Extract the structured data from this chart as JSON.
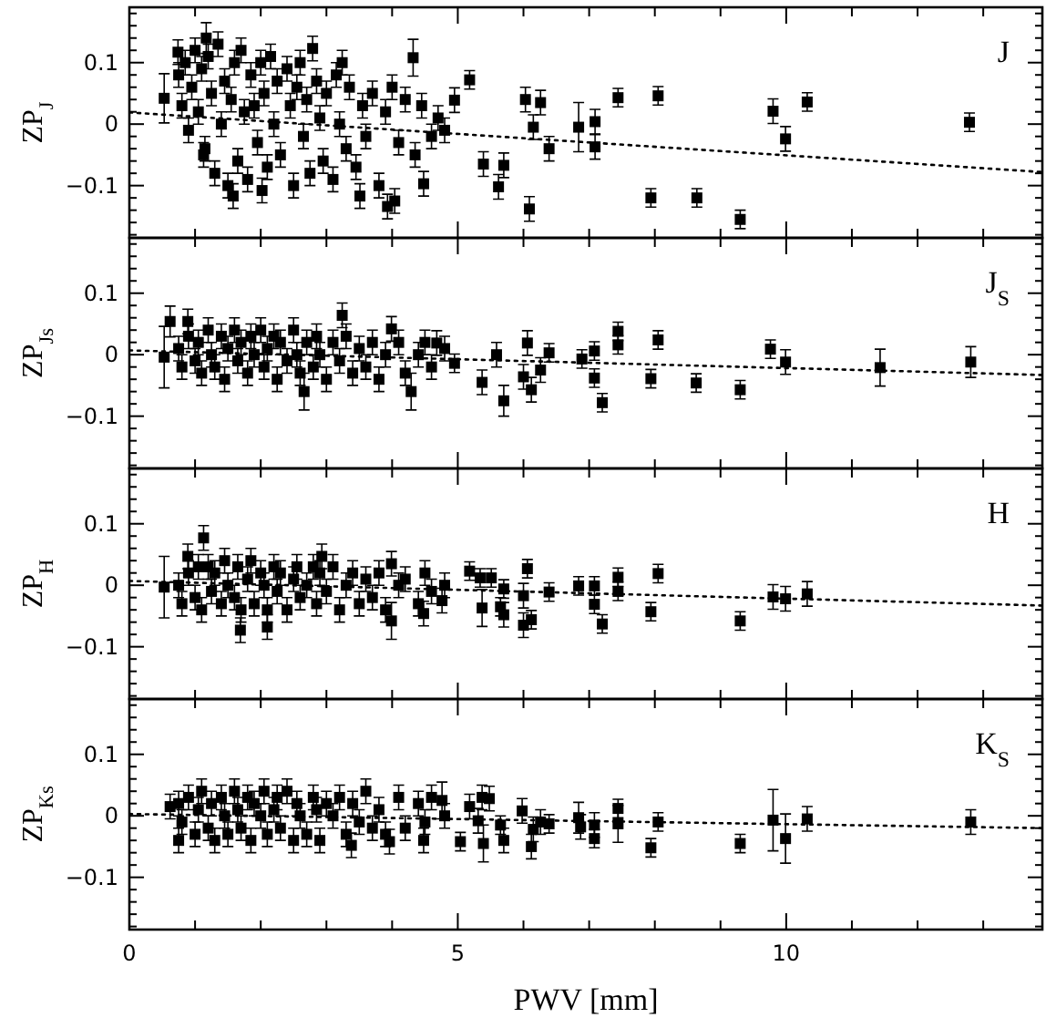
{
  "chart_data": [
    {
      "type": "scatter",
      "tick_labels": "y",
      "ylabel": "ZP$_{J}$",
      "annotations": [
        "J"
      ],
      "xlim": [
        0,
        13.9
      ],
      "ylim": [
        -0.185,
        0.19
      ],
      "xticks": [
        0,
        {
          "value": 1,
          "label": null
        },
        {
          "value": 2,
          "label": null
        },
        {
          "value": 3,
          "label": null
        },
        {
          "value": 4,
          "label": null
        },
        5,
        {
          "value": 6,
          "label": null
        },
        {
          "value": 7,
          "label": null
        },
        {
          "value": 8,
          "label": null
        },
        {
          "value": 9,
          "label": null
        },
        10,
        {
          "value": 11,
          "label": null
        },
        {
          "value": 12,
          "label": null
        },
        {
          "value": 13,
          "label": null
        }
      ],
      "yticks": [
        {
          "value": -0.18,
          "label": null
        },
        {
          "value": -0.16,
          "label": null
        },
        {
          "value": -0.14,
          "label": null
        },
        {
          "value": -0.12,
          "label": null
        },
        {
          "value": -0.1,
          "label": "−0.1"
        },
        {
          "value": -0.08,
          "label": null
        },
        {
          "value": -0.06,
          "label": null
        },
        {
          "value": -0.04,
          "label": null
        },
        {
          "value": -0.02,
          "label": null
        },
        {
          "value": 0,
          "label": "0"
        },
        {
          "value": 0.02,
          "label": null
        },
        {
          "value": 0.04,
          "label": null
        },
        {
          "value": 0.06,
          "label": null
        },
        {
          "value": 0.08,
          "label": null
        },
        {
          "value": 0.1,
          "label": "0.1"
        },
        {
          "value": 0.12,
          "label": null
        },
        {
          "value": 0.14,
          "label": null
        },
        {
          "value": 0.16,
          "label": null
        },
        {
          "value": 0.18,
          "label": null
        }
      ],
      "series": [
        {
          "marker": "square",
          "color": "#000000",
          "x": [
            0.75,
            0.8,
            0.85,
            0.9,
            0.95,
            1.0,
            1.05,
            1.1,
            1.15,
            1.2,
            1.25,
            1.3,
            1.35,
            1.4,
            1.45,
            1.5,
            1.55,
            1.6,
            1.65,
            1.7,
            1.75,
            1.8,
            1.85,
            1.9,
            1.95,
            2.0,
            2.05,
            2.1,
            2.15,
            2.2,
            2.25,
            2.3,
            2.4,
            2.45,
            2.5,
            2.55,
            2.6,
            2.65,
            2.7,
            2.75,
            2.85,
            2.9,
            2.95,
            3.0,
            3.1,
            3.15,
            3.2,
            3.3,
            3.35,
            3.45,
            3.55,
            3.6,
            3.7,
            3.8,
            3.9,
            4.0,
            4.1,
            4.2,
            4.35,
            4.45,
            4.6,
            4.7,
            4.8,
            0.53,
            0.74,
            1.17,
            2.79,
            3.24,
            4.32,
            1.13,
            1.58,
            2.02,
            3.51,
            3.93,
            4.04,
            4.48,
            4.95,
            5.18,
            5.39,
            5.62,
            5.7,
            6.09,
            6.03,
            6.26,
            6.15,
            6.39,
            6.84,
            7.09,
            7.09,
            7.44,
            7.94,
            8.05,
            8.64,
            9.3,
            9.8,
            9.99,
            10.32,
            12.79
          ],
          "values": [
            0.08,
            0.03,
            0.1,
            -0.01,
            0.06,
            0.12,
            0.02,
            0.09,
            -0.04,
            0.11,
            0.05,
            -0.08,
            0.13,
            0.0,
            0.07,
            -0.1,
            0.04,
            0.1,
            -0.06,
            0.12,
            0.02,
            -0.09,
            0.08,
            0.03,
            -0.03,
            0.1,
            0.05,
            -0.07,
            0.11,
            0.0,
            0.07,
            -0.05,
            0.09,
            0.03,
            -0.1,
            0.06,
            0.1,
            -0.02,
            0.04,
            -0.08,
            0.07,
            0.01,
            -0.06,
            0.05,
            -0.09,
            0.08,
            0.0,
            -0.04,
            0.06,
            -0.07,
            0.03,
            -0.02,
            0.05,
            -0.1,
            0.02,
            0.06,
            -0.03,
            0.04,
            -0.05,
            0.03,
            -0.02,
            0.01,
            -0.01,
            0.042,
            0.117,
            0.14,
            0.123,
            0.1,
            0.108,
            -0.05,
            -0.117,
            -0.108,
            -0.117,
            -0.134,
            -0.125,
            -0.097,
            0.039,
            0.072,
            -0.065,
            -0.102,
            -0.067,
            -0.138,
            0.04,
            0.035,
            -0.005,
            -0.04,
            -0.005,
            -0.037,
            0.004,
            0.043,
            -0.12,
            0.046,
            -0.12,
            -0.155,
            0.021,
            -0.024,
            0.036,
            0.003
          ],
          "errors": [
            0.02,
            0.02,
            0.02,
            0.02,
            0.02,
            0.02,
            0.02,
            0.02,
            0.02,
            0.02,
            0.02,
            0.02,
            0.02,
            0.02,
            0.02,
            0.02,
            0.02,
            0.02,
            0.02,
            0.02,
            0.02,
            0.02,
            0.02,
            0.02,
            0.02,
            0.02,
            0.02,
            0.02,
            0.02,
            0.02,
            0.02,
            0.02,
            0.02,
            0.02,
            0.02,
            0.02,
            0.02,
            0.02,
            0.02,
            0.02,
            0.02,
            0.02,
            0.02,
            0.02,
            0.02,
            0.02,
            0.02,
            0.02,
            0.02,
            0.02,
            0.02,
            0.02,
            0.02,
            0.02,
            0.02,
            0.02,
            0.02,
            0.02,
            0.02,
            0.02,
            0.02,
            0.02,
            0.02,
            0.04,
            0.02,
            0.025,
            0.02,
            0.02,
            0.03,
            0.02,
            0.02,
            0.02,
            0.02,
            0.02,
            0.02,
            0.02,
            0.02,
            0.015,
            0.02,
            0.02,
            0.02,
            0.02,
            0.02,
            0.02,
            0.02,
            0.02,
            0.04,
            0.02,
            0.02,
            0.015,
            0.015,
            0.015,
            0.015,
            0.015,
            0.02,
            0.02,
            0.015,
            0.015
          ]
        },
        {
          "type": "line",
          "color": "#000000",
          "line_style": "dotted",
          "x": [
            0,
            13.9
          ],
          "values": [
            0.019,
            -0.078
          ]
        }
      ]
    },
    {
      "type": "scatter",
      "tick_labels": "y",
      "ylabel": "ZP$_{Js}$",
      "annotations": [
        "J$_{S}$"
      ],
      "xlim": [
        0,
        13.9
      ],
      "ylim": [
        -0.185,
        0.19
      ],
      "xticks": [
        0,
        {
          "value": 1,
          "label": null
        },
        {
          "value": 2,
          "label": null
        },
        {
          "value": 3,
          "label": null
        },
        {
          "value": 4,
          "label": null
        },
        5,
        {
          "value": 6,
          "label": null
        },
        {
          "value": 7,
          "label": null
        },
        {
          "value": 8,
          "label": null
        },
        {
          "value": 9,
          "label": null
        },
        10,
        {
          "value": 11,
          "label": null
        },
        {
          "value": 12,
          "label": null
        },
        {
          "value": 13,
          "label": null
        }
      ],
      "yticks": [
        {
          "value": -0.18,
          "label": null
        },
        {
          "value": -0.16,
          "label": null
        },
        {
          "value": -0.14,
          "label": null
        },
        {
          "value": -0.12,
          "label": null
        },
        {
          "value": -0.1,
          "label": "−0.1"
        },
        {
          "value": -0.08,
          "label": null
        },
        {
          "value": -0.06,
          "label": null
        },
        {
          "value": -0.04,
          "label": null
        },
        {
          "value": -0.02,
          "label": null
        },
        {
          "value": 0,
          "label": "0"
        },
        {
          "value": 0.02,
          "label": null
        },
        {
          "value": 0.04,
          "label": null
        },
        {
          "value": 0.06,
          "label": null
        },
        {
          "value": 0.08,
          "label": null
        },
        {
          "value": 0.1,
          "label": "0.1"
        },
        {
          "value": 0.12,
          "label": null
        },
        {
          "value": 0.14,
          "label": null
        },
        {
          "value": 0.16,
          "label": null
        },
        {
          "value": 0.18,
          "label": null
        }
      ],
      "series": [
        {
          "marker": "square",
          "color": "#000000",
          "x": [
            0.75,
            0.8,
            0.9,
            1.0,
            1.05,
            1.1,
            1.2,
            1.25,
            1.3,
            1.4,
            1.45,
            1.5,
            1.6,
            1.65,
            1.7,
            1.8,
            1.85,
            1.9,
            2.0,
            2.05,
            2.1,
            2.2,
            2.25,
            2.3,
            2.4,
            2.5,
            2.55,
            2.6,
            2.7,
            2.8,
            2.85,
            2.9,
            3.0,
            3.1,
            3.2,
            3.3,
            3.4,
            3.5,
            3.6,
            3.7,
            3.8,
            3.9,
            4.1,
            4.2,
            4.4,
            4.5,
            4.6,
            4.8,
            0.53,
            0.62,
            0.89,
            3.24,
            3.99,
            2.66,
            4.29,
            4.68,
            4.95,
            5.37,
            5.7,
            5.59,
            6.0,
            6.06,
            6.12,
            6.26,
            6.39,
            6.89,
            7.08,
            7.08,
            7.2,
            7.44,
            7.44,
            7.94,
            8.05,
            8.63,
            9.3,
            9.76,
            9.99,
            11.43,
            12.81
          ],
          "values": [
            0.01,
            -0.02,
            0.03,
            -0.01,
            0.02,
            -0.03,
            0.04,
            0.0,
            -0.02,
            0.03,
            -0.04,
            0.01,
            0.04,
            -0.01,
            0.02,
            -0.03,
            0.03,
            0.0,
            0.04,
            -0.02,
            0.01,
            0.03,
            -0.04,
            0.02,
            -0.01,
            0.04,
            0.0,
            -0.03,
            0.02,
            -0.02,
            0.03,
            0.0,
            -0.04,
            0.02,
            -0.01,
            0.03,
            -0.03,
            0.01,
            -0.02,
            0.02,
            -0.04,
            0.0,
            0.02,
            -0.03,
            0.0,
            0.02,
            -0.02,
            0.01,
            -0.004,
            0.054,
            0.054,
            0.064,
            0.042,
            -0.06,
            -0.06,
            0.019,
            -0.014,
            -0.045,
            -0.075,
            0.0,
            -0.036,
            0.019,
            -0.057,
            -0.025,
            0.003,
            -0.007,
            0.006,
            -0.038,
            -0.078,
            0.038,
            0.016,
            -0.039,
            0.024,
            -0.046,
            -0.057,
            0.009,
            -0.012,
            -0.021,
            -0.012
          ],
          "errors": [
            0.02,
            0.02,
            0.02,
            0.02,
            0.02,
            0.02,
            0.02,
            0.02,
            0.02,
            0.02,
            0.02,
            0.02,
            0.02,
            0.02,
            0.02,
            0.02,
            0.02,
            0.02,
            0.02,
            0.02,
            0.02,
            0.02,
            0.02,
            0.02,
            0.02,
            0.02,
            0.02,
            0.02,
            0.02,
            0.02,
            0.02,
            0.02,
            0.02,
            0.02,
            0.02,
            0.02,
            0.02,
            0.02,
            0.02,
            0.02,
            0.02,
            0.02,
            0.02,
            0.02,
            0.02,
            0.02,
            0.02,
            0.02,
            0.05,
            0.025,
            0.02,
            0.02,
            0.02,
            0.03,
            0.03,
            0.02,
            0.015,
            0.02,
            0.025,
            0.02,
            0.02,
            0.02,
            0.02,
            0.02,
            0.015,
            0.015,
            0.015,
            0.015,
            0.015,
            0.015,
            0.015,
            0.015,
            0.015,
            0.015,
            0.015,
            0.015,
            0.02,
            0.03,
            0.025
          ]
        },
        {
          "type": "line",
          "color": "#000000",
          "line_style": "dotted",
          "x": [
            0,
            13.9
          ],
          "values": [
            0.007,
            -0.033
          ]
        }
      ]
    },
    {
      "type": "scatter",
      "tick_labels": "y",
      "ylabel": "ZP$_{H}$",
      "annotations": [
        "H"
      ],
      "xlim": [
        0,
        13.9
      ],
      "ylim": [
        -0.185,
        0.19
      ],
      "xticks": [
        0,
        {
          "value": 1,
          "label": null
        },
        {
          "value": 2,
          "label": null
        },
        {
          "value": 3,
          "label": null
        },
        {
          "value": 4,
          "label": null
        },
        5,
        {
          "value": 6,
          "label": null
        },
        {
          "value": 7,
          "label": null
        },
        {
          "value": 8,
          "label": null
        },
        {
          "value": 9,
          "label": null
        },
        10,
        {
          "value": 11,
          "label": null
        },
        {
          "value": 12,
          "label": null
        },
        {
          "value": 13,
          "label": null
        }
      ],
      "yticks": [
        {
          "value": -0.18,
          "label": null
        },
        {
          "value": -0.16,
          "label": null
        },
        {
          "value": -0.14,
          "label": null
        },
        {
          "value": -0.12,
          "label": null
        },
        {
          "value": -0.1,
          "label": "−0.1"
        },
        {
          "value": -0.08,
          "label": null
        },
        {
          "value": -0.06,
          "label": null
        },
        {
          "value": -0.04,
          "label": null
        },
        {
          "value": -0.02,
          "label": null
        },
        {
          "value": 0,
          "label": "0"
        },
        {
          "value": 0.02,
          "label": null
        },
        {
          "value": 0.04,
          "label": null
        },
        {
          "value": 0.06,
          "label": null
        },
        {
          "value": 0.08,
          "label": null
        },
        {
          "value": 0.1,
          "label": "0.1"
        },
        {
          "value": 0.12,
          "label": null
        },
        {
          "value": 0.14,
          "label": null
        },
        {
          "value": 0.16,
          "label": null
        },
        {
          "value": 0.18,
          "label": null
        }
      ],
      "series": [
        {
          "marker": "square",
          "color": "#000000",
          "x": [
            0.75,
            0.8,
            0.9,
            1.0,
            1.05,
            1.1,
            1.2,
            1.25,
            1.3,
            1.4,
            1.45,
            1.5,
            1.6,
            1.65,
            1.7,
            1.8,
            1.85,
            1.9,
            2.0,
            2.05,
            2.1,
            2.2,
            2.25,
            2.3,
            2.4,
            2.5,
            2.55,
            2.6,
            2.7,
            2.8,
            2.85,
            2.9,
            3.0,
            3.1,
            3.2,
            3.3,
            3.4,
            3.5,
            3.6,
            3.7,
            3.8,
            3.9,
            4.1,
            4.2,
            4.4,
            4.5,
            4.6,
            4.8,
            0.53,
            0.89,
            1.13,
            2.93,
            3.99,
            1.69,
            2.1,
            3.99,
            4.48,
            4.76,
            5.18,
            5.37,
            5.34,
            5.51,
            5.65,
            5.7,
            5.7,
            6.0,
            6.0,
            6.06,
            6.12,
            6.39,
            6.84,
            7.08,
            7.08,
            7.2,
            7.44,
            7.44,
            7.94,
            8.05,
            9.3,
            9.8,
            9.99,
            10.32
          ],
          "values": [
            0.0,
            -0.03,
            0.02,
            -0.02,
            0.03,
            -0.04,
            0.03,
            -0.01,
            0.02,
            -0.03,
            0.04,
            0.0,
            -0.02,
            0.03,
            -0.04,
            0.01,
            0.04,
            -0.03,
            0.02,
            0.0,
            -0.04,
            0.03,
            -0.01,
            0.02,
            -0.04,
            0.01,
            0.03,
            -0.02,
            0.0,
            0.03,
            -0.03,
            0.02,
            -0.01,
            0.03,
            -0.04,
            0.0,
            0.02,
            -0.03,
            0.01,
            -0.02,
            0.02,
            -0.04,
            0.0,
            0.01,
            -0.03,
            0.02,
            -0.01,
            0.0,
            -0.003,
            0.047,
            0.077,
            0.047,
            0.035,
            -0.073,
            -0.068,
            -0.058,
            -0.046,
            -0.025,
            0.023,
            -0.037,
            0.012,
            0.012,
            -0.035,
            -0.048,
            -0.006,
            -0.017,
            -0.065,
            0.027,
            -0.056,
            -0.011,
            -0.001,
            -0.001,
            -0.031,
            -0.063,
            0.013,
            -0.01,
            -0.043,
            0.019,
            -0.058,
            -0.019,
            -0.022,
            -0.014
          ],
          "errors": [
            0.02,
            0.02,
            0.02,
            0.02,
            0.02,
            0.02,
            0.02,
            0.02,
            0.02,
            0.02,
            0.02,
            0.02,
            0.02,
            0.02,
            0.02,
            0.02,
            0.02,
            0.02,
            0.02,
            0.02,
            0.02,
            0.02,
            0.02,
            0.02,
            0.02,
            0.02,
            0.02,
            0.02,
            0.02,
            0.02,
            0.02,
            0.02,
            0.02,
            0.02,
            0.02,
            0.02,
            0.02,
            0.02,
            0.02,
            0.02,
            0.02,
            0.02,
            0.02,
            0.02,
            0.02,
            0.02,
            0.02,
            0.02,
            0.05,
            0.02,
            0.02,
            0.02,
            0.02,
            0.02,
            0.02,
            0.03,
            0.02,
            0.02,
            0.015,
            0.03,
            0.015,
            0.015,
            0.015,
            0.02,
            0.015,
            0.02,
            0.02,
            0.015,
            0.015,
            0.015,
            0.015,
            0.015,
            0.015,
            0.015,
            0.015,
            0.015,
            0.015,
            0.015,
            0.015,
            0.02,
            0.02,
            0.02
          ]
        },
        {
          "type": "line",
          "color": "#000000",
          "line_style": "dotted",
          "x": [
            0,
            13.9
          ],
          "values": [
            0.007,
            -0.033
          ]
        }
      ]
    },
    {
      "type": "scatter",
      "xlabel": "PWV [mm]",
      "ylabel": "ZP$_{Ks}$",
      "annotations": [
        "K$_{S}$"
      ],
      "xlim": [
        0,
        13.9
      ],
      "ylim": [
        -0.185,
        0.19
      ],
      "xticks": [
        0,
        {
          "value": 1,
          "label": null
        },
        {
          "value": 2,
          "label": null
        },
        {
          "value": 3,
          "label": null
        },
        {
          "value": 4,
          "label": null
        },
        5,
        {
          "value": 6,
          "label": null
        },
        {
          "value": 7,
          "label": null
        },
        {
          "value": 8,
          "label": null
        },
        {
          "value": 9,
          "label": null
        },
        10,
        {
          "value": 11,
          "label": null
        },
        {
          "value": 12,
          "label": null
        },
        {
          "value": 13,
          "label": null
        }
      ],
      "yticks": [
        {
          "value": -0.18,
          "label": null
        },
        {
          "value": -0.16,
          "label": null
        },
        {
          "value": -0.14,
          "label": null
        },
        {
          "value": -0.12,
          "label": null
        },
        {
          "value": -0.1,
          "label": "−0.1"
        },
        {
          "value": -0.08,
          "label": null
        },
        {
          "value": -0.06,
          "label": null
        },
        {
          "value": -0.04,
          "label": null
        },
        {
          "value": -0.02,
          "label": null
        },
        {
          "value": 0,
          "label": "0"
        },
        {
          "value": 0.02,
          "label": null
        },
        {
          "value": 0.04,
          "label": null
        },
        {
          "value": 0.06,
          "label": null
        },
        {
          "value": 0.08,
          "label": null
        },
        {
          "value": 0.1,
          "label": "0.1"
        },
        {
          "value": 0.12,
          "label": null
        },
        {
          "value": 0.14,
          "label": null
        },
        {
          "value": 0.16,
          "label": null
        },
        {
          "value": 0.18,
          "label": null
        }
      ],
      "series": [
        {
          "marker": "square",
          "color": "#000000",
          "x": [
            0.75,
            0.8,
            0.9,
            1.0,
            1.05,
            1.1,
            1.2,
            1.25,
            1.3,
            1.4,
            1.45,
            1.5,
            1.6,
            1.65,
            1.7,
            1.8,
            1.85,
            1.9,
            2.0,
            2.05,
            2.1,
            2.2,
            2.25,
            2.3,
            2.4,
            2.5,
            2.55,
            2.6,
            2.7,
            2.8,
            2.85,
            2.9,
            3.0,
            3.1,
            3.2,
            3.3,
            3.4,
            3.5,
            3.6,
            3.7,
            3.8,
            3.9,
            4.1,
            4.2,
            4.4,
            4.5,
            4.6,
            4.8,
            0.62,
            0.75,
            3.38,
            3.96,
            4.48,
            4.76,
            5.04,
            5.18,
            5.31,
            5.37,
            5.48,
            5.39,
            5.65,
            5.7,
            5.98,
            6.12,
            6.15,
            6.26,
            6.39,
            6.84,
            6.87,
            7.08,
            7.08,
            7.44,
            7.44,
            7.94,
            8.05,
            9.3,
            9.8,
            9.99,
            10.32,
            12.81
          ],
          "values": [
            0.02,
            -0.01,
            0.03,
            -0.03,
            0.01,
            0.04,
            -0.02,
            0.02,
            -0.04,
            0.03,
            0.0,
            -0.03,
            0.04,
            0.01,
            -0.02,
            0.03,
            -0.04,
            0.02,
            0.0,
            0.04,
            -0.03,
            0.01,
            0.03,
            -0.02,
            0.04,
            -0.04,
            0.02,
            0.0,
            -0.03,
            0.03,
            0.01,
            -0.04,
            0.02,
            0.0,
            0.03,
            -0.03,
            0.02,
            -0.01,
            0.04,
            -0.02,
            0.01,
            -0.03,
            0.03,
            -0.02,
            0.02,
            -0.01,
            0.03,
            0.0,
            0.015,
            -0.04,
            -0.048,
            -0.042,
            -0.04,
            0.025,
            -0.042,
            0.015,
            -0.008,
            0.03,
            0.028,
            -0.045,
            -0.015,
            -0.04,
            0.008,
            -0.05,
            -0.022,
            -0.01,
            -0.013,
            -0.003,
            -0.018,
            -0.015,
            -0.037,
            0.012,
            -0.013,
            -0.052,
            -0.01,
            -0.045,
            -0.007,
            -0.037,
            -0.005,
            -0.01
          ],
          "errors": [
            0.02,
            0.02,
            0.02,
            0.02,
            0.02,
            0.02,
            0.02,
            0.02,
            0.02,
            0.02,
            0.02,
            0.02,
            0.02,
            0.02,
            0.02,
            0.02,
            0.02,
            0.02,
            0.02,
            0.02,
            0.02,
            0.02,
            0.02,
            0.02,
            0.02,
            0.02,
            0.02,
            0.02,
            0.02,
            0.02,
            0.02,
            0.02,
            0.02,
            0.02,
            0.02,
            0.02,
            0.02,
            0.02,
            0.02,
            0.02,
            0.02,
            0.02,
            0.02,
            0.02,
            0.02,
            0.02,
            0.02,
            0.02,
            0.02,
            0.02,
            0.02,
            0.02,
            0.02,
            0.03,
            0.015,
            0.02,
            0.02,
            0.02,
            0.02,
            0.03,
            0.015,
            0.02,
            0.02,
            0.02,
            0.02,
            0.02,
            0.015,
            0.025,
            0.02,
            0.02,
            0.015,
            0.015,
            0.03,
            0.015,
            0.015,
            0.015,
            0.05,
            0.04,
            0.02,
            0.02
          ]
        },
        {
          "type": "line",
          "color": "#000000",
          "line_style": "dotted",
          "x": [
            0,
            13.9
          ],
          "values": [
            0.003,
            -0.02
          ]
        }
      ]
    }
  ]
}
